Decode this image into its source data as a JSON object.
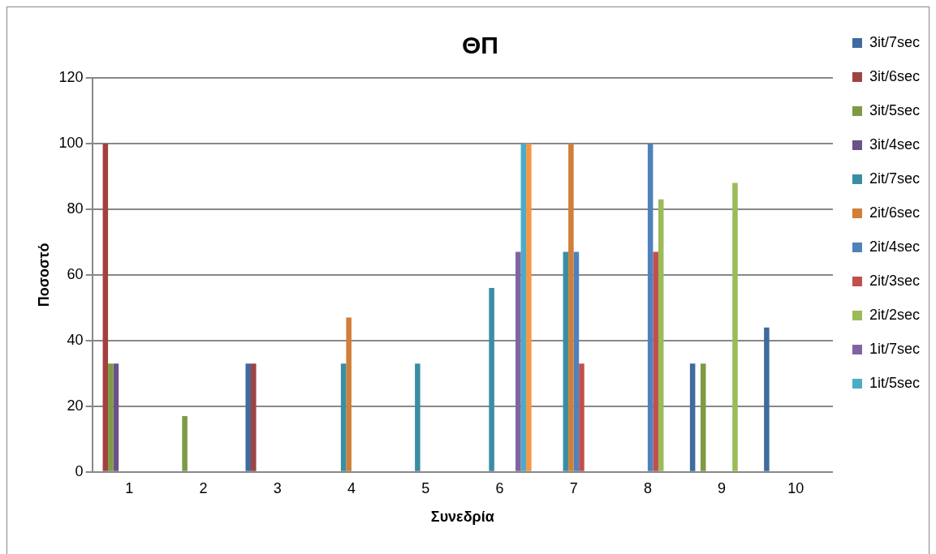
{
  "chart_data": {
    "type": "bar",
    "title": "ΘΠ",
    "xlabel": "Συνεδρία",
    "ylabel": "Ποσοστό",
    "categories": [
      "1",
      "2",
      "3",
      "4",
      "5",
      "6",
      "7",
      "8",
      "9",
      "10"
    ],
    "ylim": [
      0,
      120
    ],
    "yticks": [
      0,
      20,
      40,
      60,
      80,
      100,
      120
    ],
    "grid": "y",
    "legend": "right",
    "series": [
      {
        "name": "3it/7sec",
        "color": "#3f6b9e",
        "values": [
          null,
          null,
          33,
          null,
          null,
          null,
          null,
          null,
          33,
          44
        ]
      },
      {
        "name": "3it/6sec",
        "color": "#a04340",
        "values": [
          100,
          null,
          33,
          null,
          null,
          null,
          null,
          null,
          null,
          null
        ]
      },
      {
        "name": "3it/5sec",
        "color": "#7e9a45",
        "values": [
          33,
          17,
          null,
          null,
          null,
          null,
          null,
          null,
          33,
          null
        ]
      },
      {
        "name": "3it/4sec",
        "color": "#6a5188",
        "values": [
          33,
          null,
          null,
          null,
          null,
          null,
          null,
          null,
          null,
          null
        ]
      },
      {
        "name": "2it/7sec",
        "color": "#3a8ea3",
        "values": [
          null,
          null,
          null,
          33,
          33,
          56,
          67,
          null,
          null,
          null
        ]
      },
      {
        "name": "2it/6sec",
        "color": "#d07e38",
        "values": [
          null,
          null,
          null,
          47,
          null,
          null,
          100,
          null,
          null,
          null
        ]
      },
      {
        "name": "2it/4sec",
        "color": "#4f81bd",
        "values": [
          null,
          null,
          null,
          null,
          null,
          null,
          67,
          100,
          null,
          null
        ]
      },
      {
        "name": "2it/3sec",
        "color": "#c0504d",
        "values": [
          null,
          null,
          null,
          null,
          null,
          null,
          33,
          67,
          null,
          null
        ]
      },
      {
        "name": "2it/2sec",
        "color": "#9bbb59",
        "values": [
          null,
          null,
          null,
          null,
          null,
          null,
          null,
          83,
          88,
          null
        ]
      },
      {
        "name": "1it/7sec",
        "color": "#8064a2",
        "values": [
          null,
          null,
          null,
          null,
          null,
          67,
          null,
          null,
          null,
          null
        ]
      },
      {
        "name": "1it/5sec",
        "color": "#4bacc6",
        "values": [
          null,
          null,
          null,
          null,
          null,
          100,
          null,
          null,
          null,
          null
        ]
      },
      {
        "color": "#f79646",
        "values": [
          null,
          null,
          null,
          null,
          null,
          100,
          null,
          null,
          null,
          null
        ]
      }
    ]
  }
}
